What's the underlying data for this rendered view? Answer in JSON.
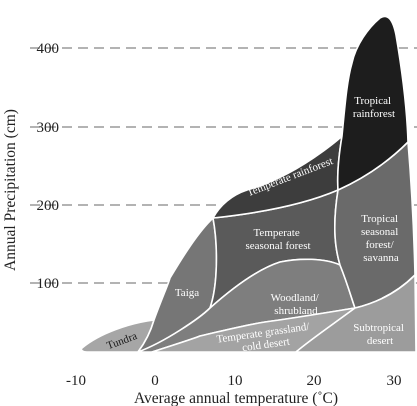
{
  "axes": {
    "xlabel": "Average annual temperature (˚C)",
    "ylabel": "Annual Precipitation (cm)",
    "x_ticks": [
      "-10",
      "0",
      "10",
      "20",
      "30"
    ],
    "y_ticks": [
      "100",
      "200",
      "300",
      "400"
    ]
  },
  "biomes": {
    "tundra": "Tundra",
    "taiga": "Taiga",
    "temperate_rainforest": "Temperate rainforest",
    "temperate_seasonal_forest": [
      "Temperate",
      "seasonal forest"
    ],
    "woodland_shrubland": [
      "Woodland/",
      "shrubland"
    ],
    "temperate_grassland": [
      "Temperate grassland/",
      "cold desert"
    ],
    "tropical_rainforest": [
      "Tropical",
      "rainforest"
    ],
    "tropical_seasonal_forest": [
      "Tropical",
      "seasonal",
      "forest/",
      "savanna"
    ],
    "subtropical_desert": [
      "Subtropical",
      "desert"
    ]
  },
  "colors": {
    "tundra": "#a6a6a6",
    "taiga": "#767676",
    "temperate_rainforest": "#3d3d3d",
    "temperate_seasonal_forest": "#5a5a5a",
    "woodland_shrubland": "#7e7e7e",
    "temperate_grassland": "#a3a3a3",
    "tropical_rainforest": "#1d1d1d",
    "tropical_seasonal_forest": "#6a6a6a",
    "subtropical_desert": "#9c9c9c",
    "gridline": "#9a9a9a"
  }
}
